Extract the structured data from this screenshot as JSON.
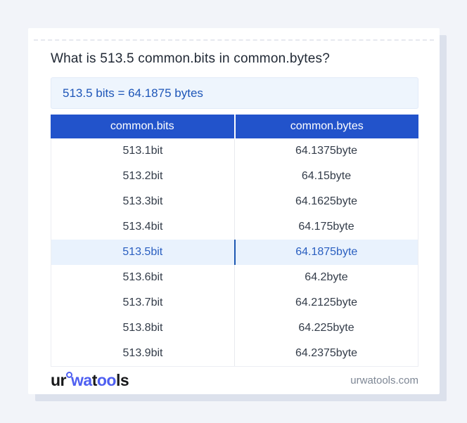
{
  "page": {
    "title": "What is 513.5 common.bits in common.bytes?",
    "result": "513.5 bits = 64.1875 bytes"
  },
  "table": {
    "headers": [
      "common.bits",
      "common.bytes"
    ],
    "highlight_index": 4,
    "rows": [
      {
        "bits": "513.1bit",
        "bytes": "64.1375byte"
      },
      {
        "bits": "513.2bit",
        "bytes": "64.15byte"
      },
      {
        "bits": "513.3bit",
        "bytes": "64.1625byte"
      },
      {
        "bits": "513.4bit",
        "bytes": "64.175byte"
      },
      {
        "bits": "513.5bit",
        "bytes": "64.1875byte"
      },
      {
        "bits": "513.6bit",
        "bytes": "64.2byte"
      },
      {
        "bits": "513.7bit",
        "bytes": "64.2125byte"
      },
      {
        "bits": "513.8bit",
        "bytes": "64.225byte"
      },
      {
        "bits": "513.9bit",
        "bytes": "64.2375byte"
      }
    ]
  },
  "footer": {
    "logo": {
      "part1": "ur",
      "part2": "wa",
      "part3": "t",
      "part4": "oo",
      "part5": "ls"
    },
    "domain": "urwatools.com"
  },
  "colors": {
    "page_background": "#f2f4f9",
    "card_background": "#ffffff",
    "card_shadow": "#dce1ec",
    "header_blue": "#2253cb",
    "result_box_background": "#eef5fd",
    "result_text_blue": "#1e56b8",
    "highlight_row_background": "#e9f2fd",
    "highlight_text_blue": "#2a5fc0",
    "highlight_divider_blue": "#1d57b2",
    "cell_text": "#333c49",
    "logo_blue": "#4e5ff1",
    "logo_dark": "#17181a",
    "domain_gray": "#7e8795"
  }
}
